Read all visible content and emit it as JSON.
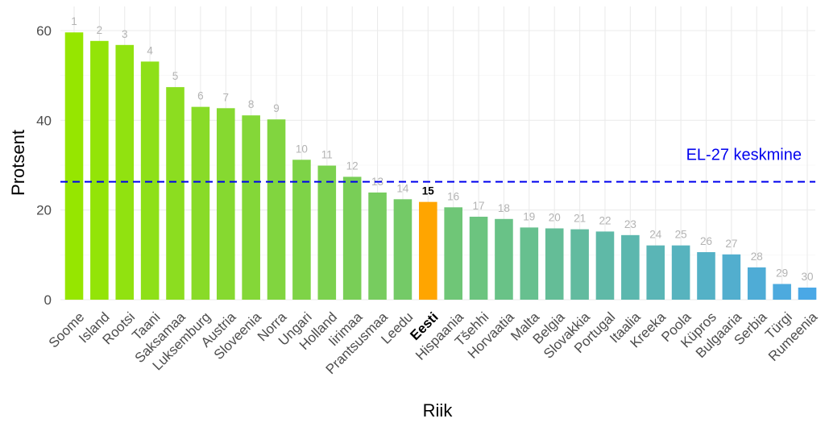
{
  "chart_data": {
    "type": "bar",
    "xlabel": "Riik",
    "ylabel": "Protsent",
    "ylim": [
      0,
      62
    ],
    "yticks": [
      0,
      20,
      40,
      60
    ],
    "grid": true,
    "highlight": "Eesti",
    "highlight_color": "#ffa500",
    "gradient_colors": [
      "#96e600",
      "#4aa8e6"
    ],
    "categories": [
      "Soome",
      "Island",
      "Rootsi",
      "Taani",
      "Saksamaa",
      "Luksemburg",
      "Austria",
      "Sloveenia",
      "Norra",
      "Ungari",
      "Holland",
      "Iirimaa",
      "Prantsusmaa",
      "Leedu",
      "Eesti",
      "Hispaania",
      "Tšehhi",
      "Horvaatia",
      "Malta",
      "Belgia",
      "Slovakkia",
      "Portugal",
      "Itaalia",
      "Kreeka",
      "Poola",
      "Küpros",
      "Bulgaaria",
      "Serbia",
      "Türgi",
      "Rumeenia"
    ],
    "values": [
      59.6,
      57.7,
      56.8,
      53.1,
      47.4,
      43.0,
      42.7,
      41.1,
      40.2,
      31.2,
      29.9,
      27.4,
      23.9,
      22.4,
      21.8,
      20.6,
      18.5,
      18.0,
      16.1,
      15.9,
      15.7,
      15.2,
      14.4,
      12.1,
      12.1,
      10.6,
      10.1,
      7.2,
      3.5,
      2.7
    ],
    "ranks": [
      "1",
      "2",
      "3",
      "4",
      "5",
      "6",
      "7",
      "8",
      "9",
      "10",
      "11",
      "12",
      "13",
      "14",
      "15",
      "16",
      "17",
      "18",
      "19",
      "20",
      "21",
      "22",
      "23",
      "24",
      "25",
      "26",
      "27",
      "28",
      "29",
      "30"
    ],
    "reference_line": {
      "label": "EL-27 keskmine",
      "value": 26.3,
      "color": "#0000ee",
      "style": "dashed"
    }
  }
}
